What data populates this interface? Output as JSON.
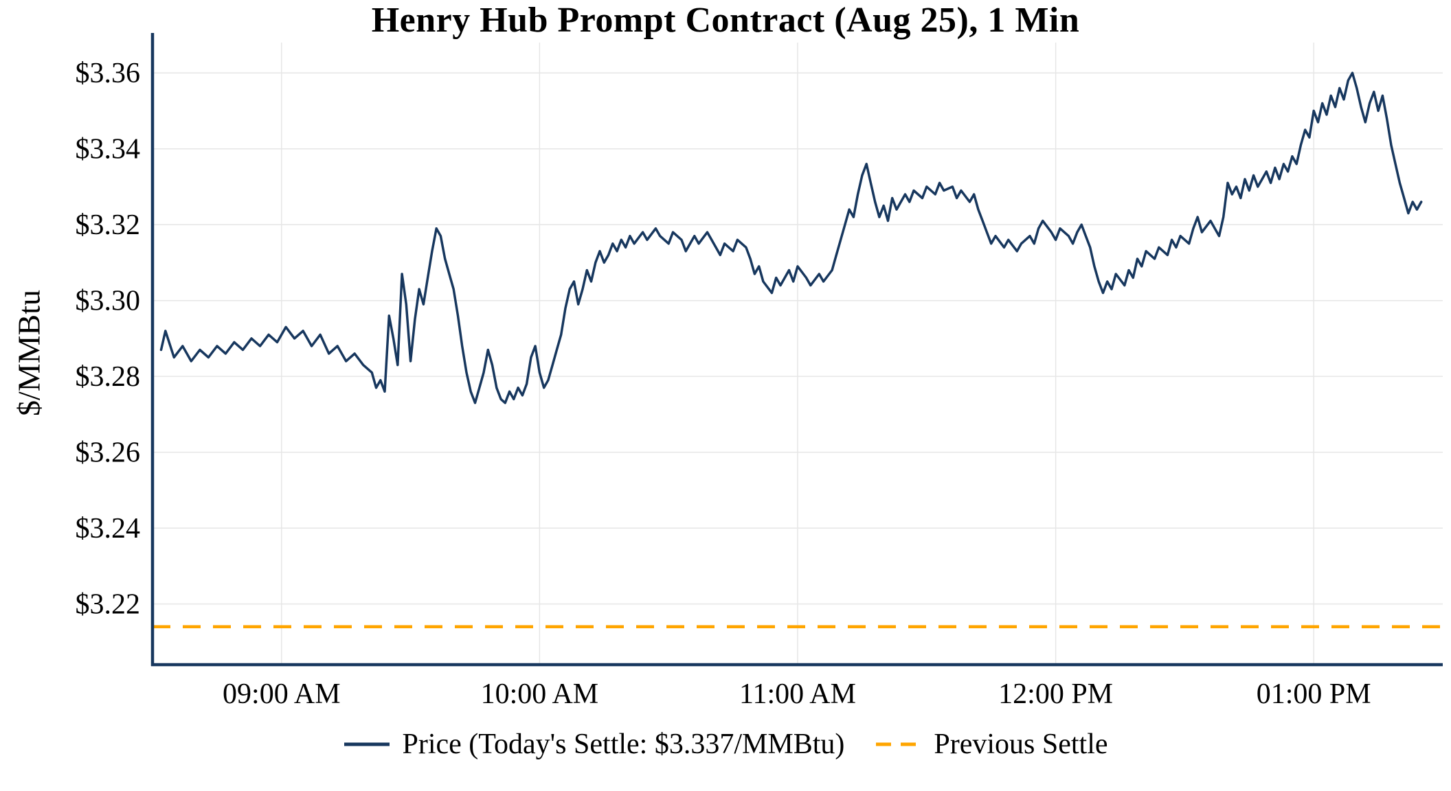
{
  "page": {
    "background": "#ffffff"
  },
  "chart_data": {
    "type": "line",
    "title": "Henry Hub Prompt Contract (Aug 25), 1 Min",
    "ylabel": "$/MMBtu",
    "xlabel": "",
    "grid": true,
    "grid_color": "#e6e6e6",
    "axis_color": "#17375e",
    "legend_position": "bottom",
    "xlim": [
      0,
      300
    ],
    "ylim": [
      3.204,
      3.368
    ],
    "x_unit": "minutes-into-session",
    "x_ticks": [
      {
        "pos": 30,
        "label": "09:00 AM"
      },
      {
        "pos": 90,
        "label": "10:00 AM"
      },
      {
        "pos": 150,
        "label": "11:00 AM"
      },
      {
        "pos": 210,
        "label": "12:00 PM"
      },
      {
        "pos": 270,
        "label": "01:00 PM"
      }
    ],
    "y_ticks": [
      {
        "pos": 3.22,
        "label": "$3.22"
      },
      {
        "pos": 3.24,
        "label": "$3.24"
      },
      {
        "pos": 3.26,
        "label": "$3.26"
      },
      {
        "pos": 3.28,
        "label": "$3.28"
      },
      {
        "pos": 3.3,
        "label": "$3.30"
      },
      {
        "pos": 3.32,
        "label": "$3.32"
      },
      {
        "pos": 3.34,
        "label": "$3.34"
      },
      {
        "pos": 3.36,
        "label": "$3.36"
      }
    ],
    "todays_settle": 3.337,
    "previous_settle": 3.214,
    "series": [
      {
        "name": "Price (Today's Settle: $3.337/MMBtu)",
        "kind": "line",
        "color": "#17375e",
        "width": 3.5,
        "points": [
          [
            2,
            3.287
          ],
          [
            3,
            3.292
          ],
          [
            5,
            3.285
          ],
          [
            7,
            3.288
          ],
          [
            9,
            3.284
          ],
          [
            11,
            3.287
          ],
          [
            13,
            3.285
          ],
          [
            15,
            3.288
          ],
          [
            17,
            3.286
          ],
          [
            19,
            3.289
          ],
          [
            21,
            3.287
          ],
          [
            23,
            3.29
          ],
          [
            25,
            3.288
          ],
          [
            27,
            3.291
          ],
          [
            29,
            3.289
          ],
          [
            31,
            3.293
          ],
          [
            33,
            3.29
          ],
          [
            35,
            3.292
          ],
          [
            37,
            3.288
          ],
          [
            39,
            3.291
          ],
          [
            41,
            3.286
          ],
          [
            43,
            3.288
          ],
          [
            45,
            3.284
          ],
          [
            47,
            3.286
          ],
          [
            49,
            3.283
          ],
          [
            51,
            3.281
          ],
          [
            52,
            3.277
          ],
          [
            53,
            3.279
          ],
          [
            54,
            3.276
          ],
          [
            55,
            3.296
          ],
          [
            56,
            3.29
          ],
          [
            57,
            3.283
          ],
          [
            58,
            3.307
          ],
          [
            59,
            3.299
          ],
          [
            60,
            3.284
          ],
          [
            61,
            3.295
          ],
          [
            62,
            3.303
          ],
          [
            63,
            3.299
          ],
          [
            64,
            3.306
          ],
          [
            65,
            3.313
          ],
          [
            66,
            3.319
          ],
          [
            67,
            3.317
          ],
          [
            68,
            3.311
          ],
          [
            69,
            3.307
          ],
          [
            70,
            3.303
          ],
          [
            71,
            3.296
          ],
          [
            72,
            3.288
          ],
          [
            73,
            3.281
          ],
          [
            74,
            3.276
          ],
          [
            75,
            3.273
          ],
          [
            76,
            3.277
          ],
          [
            77,
            3.281
          ],
          [
            78,
            3.287
          ],
          [
            79,
            3.283
          ],
          [
            80,
            3.277
          ],
          [
            81,
            3.274
          ],
          [
            82,
            3.273
          ],
          [
            83,
            3.276
          ],
          [
            84,
            3.274
          ],
          [
            85,
            3.277
          ],
          [
            86,
            3.275
          ],
          [
            87,
            3.278
          ],
          [
            88,
            3.285
          ],
          [
            89,
            3.288
          ],
          [
            90,
            3.281
          ],
          [
            91,
            3.277
          ],
          [
            92,
            3.279
          ],
          [
            93,
            3.283
          ],
          [
            94,
            3.287
          ],
          [
            95,
            3.291
          ],
          [
            96,
            3.298
          ],
          [
            97,
            3.303
          ],
          [
            98,
            3.305
          ],
          [
            99,
            3.299
          ],
          [
            100,
            3.303
          ],
          [
            101,
            3.308
          ],
          [
            102,
            3.305
          ],
          [
            103,
            3.31
          ],
          [
            104,
            3.313
          ],
          [
            105,
            3.31
          ],
          [
            106,
            3.312
          ],
          [
            107,
            3.315
          ],
          [
            108,
            3.313
          ],
          [
            109,
            3.316
          ],
          [
            110,
            3.314
          ],
          [
            111,
            3.317
          ],
          [
            112,
            3.315
          ],
          [
            114,
            3.318
          ],
          [
            115,
            3.316
          ],
          [
            117,
            3.319
          ],
          [
            118,
            3.317
          ],
          [
            120,
            3.315
          ],
          [
            121,
            3.318
          ],
          [
            123,
            3.316
          ],
          [
            124,
            3.313
          ],
          [
            126,
            3.317
          ],
          [
            127,
            3.315
          ],
          [
            129,
            3.318
          ],
          [
            130,
            3.316
          ],
          [
            132,
            3.312
          ],
          [
            133,
            3.315
          ],
          [
            135,
            3.313
          ],
          [
            136,
            3.316
          ],
          [
            138,
            3.314
          ],
          [
            139,
            3.311
          ],
          [
            140,
            3.307
          ],
          [
            141,
            3.309
          ],
          [
            142,
            3.305
          ],
          [
            144,
            3.302
          ],
          [
            145,
            3.306
          ],
          [
            146,
            3.304
          ],
          [
            148,
            3.308
          ],
          [
            149,
            3.305
          ],
          [
            150,
            3.309
          ],
          [
            152,
            3.306
          ],
          [
            153,
            3.304
          ],
          [
            155,
            3.307
          ],
          [
            156,
            3.305
          ],
          [
            158,
            3.308
          ],
          [
            159,
            3.312
          ],
          [
            160,
            3.316
          ],
          [
            161,
            3.32
          ],
          [
            162,
            3.324
          ],
          [
            163,
            3.322
          ],
          [
            164,
            3.328
          ],
          [
            165,
            3.333
          ],
          [
            166,
            3.336
          ],
          [
            167,
            3.331
          ],
          [
            168,
            3.326
          ],
          [
            169,
            3.322
          ],
          [
            170,
            3.325
          ],
          [
            171,
            3.321
          ],
          [
            172,
            3.327
          ],
          [
            173,
            3.324
          ],
          [
            175,
            3.328
          ],
          [
            176,
            3.326
          ],
          [
            177,
            3.329
          ],
          [
            179,
            3.327
          ],
          [
            180,
            3.33
          ],
          [
            182,
            3.328
          ],
          [
            183,
            3.331
          ],
          [
            184,
            3.329
          ],
          [
            186,
            3.33
          ],
          [
            187,
            3.327
          ],
          [
            188,
            3.329
          ],
          [
            190,
            3.326
          ],
          [
            191,
            3.328
          ],
          [
            192,
            3.324
          ],
          [
            193,
            3.321
          ],
          [
            194,
            3.318
          ],
          [
            195,
            3.315
          ],
          [
            196,
            3.317
          ],
          [
            198,
            3.314
          ],
          [
            199,
            3.316
          ],
          [
            201,
            3.313
          ],
          [
            202,
            3.315
          ],
          [
            204,
            3.317
          ],
          [
            205,
            3.315
          ],
          [
            206,
            3.319
          ],
          [
            207,
            3.321
          ],
          [
            209,
            3.318
          ],
          [
            210,
            3.316
          ],
          [
            211,
            3.319
          ],
          [
            213,
            3.317
          ],
          [
            214,
            3.315
          ],
          [
            215,
            3.318
          ],
          [
            216,
            3.32
          ],
          [
            217,
            3.317
          ],
          [
            218,
            3.314
          ],
          [
            219,
            3.309
          ],
          [
            220,
            3.305
          ],
          [
            221,
            3.302
          ],
          [
            222,
            3.305
          ],
          [
            223,
            3.303
          ],
          [
            224,
            3.307
          ],
          [
            226,
            3.304
          ],
          [
            227,
            3.308
          ],
          [
            228,
            3.306
          ],
          [
            229,
            3.311
          ],
          [
            230,
            3.309
          ],
          [
            231,
            3.313
          ],
          [
            233,
            3.311
          ],
          [
            234,
            3.314
          ],
          [
            236,
            3.312
          ],
          [
            237,
            3.316
          ],
          [
            238,
            3.314
          ],
          [
            239,
            3.317
          ],
          [
            241,
            3.315
          ],
          [
            242,
            3.319
          ],
          [
            243,
            3.322
          ],
          [
            244,
            3.318
          ],
          [
            246,
            3.321
          ],
          [
            247,
            3.319
          ],
          [
            248,
            3.317
          ],
          [
            249,
            3.322
          ],
          [
            250,
            3.331
          ],
          [
            251,
            3.328
          ],
          [
            252,
            3.33
          ],
          [
            253,
            3.327
          ],
          [
            254,
            3.332
          ],
          [
            255,
            3.329
          ],
          [
            256,
            3.333
          ],
          [
            257,
            3.33
          ],
          [
            258,
            3.332
          ],
          [
            259,
            3.334
          ],
          [
            260,
            3.331
          ],
          [
            261,
            3.335
          ],
          [
            262,
            3.332
          ],
          [
            263,
            3.336
          ],
          [
            264,
            3.334
          ],
          [
            265,
            3.338
          ],
          [
            266,
            3.336
          ],
          [
            267,
            3.341
          ],
          [
            268,
            3.345
          ],
          [
            269,
            3.343
          ],
          [
            270,
            3.35
          ],
          [
            271,
            3.347
          ],
          [
            272,
            3.352
          ],
          [
            273,
            3.349
          ],
          [
            274,
            3.354
          ],
          [
            275,
            3.351
          ],
          [
            276,
            3.356
          ],
          [
            277,
            3.353
          ],
          [
            278,
            3.358
          ],
          [
            279,
            3.36
          ],
          [
            280,
            3.356
          ],
          [
            281,
            3.351
          ],
          [
            282,
            3.347
          ],
          [
            283,
            3.352
          ],
          [
            284,
            3.355
          ],
          [
            285,
            3.35
          ],
          [
            286,
            3.354
          ],
          [
            287,
            3.348
          ],
          [
            288,
            3.341
          ],
          [
            289,
            3.336
          ],
          [
            290,
            3.331
          ],
          [
            291,
            3.327
          ],
          [
            292,
            3.323
          ],
          [
            293,
            3.326
          ],
          [
            294,
            3.324
          ],
          [
            295,
            3.326
          ]
        ]
      },
      {
        "name": "Previous Settle",
        "kind": "hline",
        "color": "#ffa500",
        "width": 4.5,
        "dash": [
          26,
          18
        ],
        "value": 3.214
      }
    ]
  }
}
